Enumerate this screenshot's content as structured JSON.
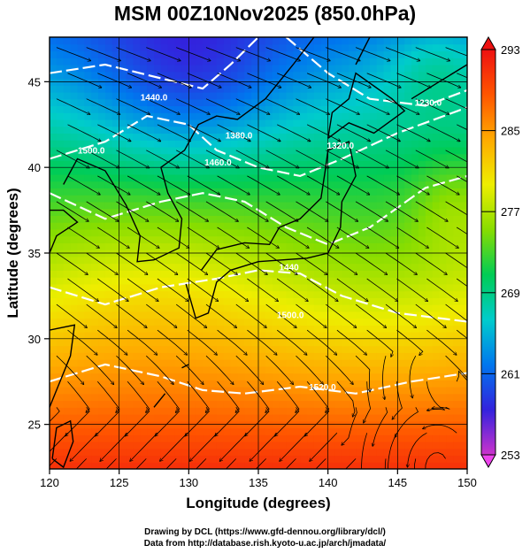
{
  "title": "MSM 00Z10Nov2025 (850.0hPa)",
  "xlabel": "Longitude (degrees)",
  "ylabel": "Latitude  (degrees)",
  "credits": {
    "line1": "Drawing by DCL (https://www.gfd-dennou.org/library/dcl/)",
    "line2": "Data from http://database.rish.kyoto-u.ac.jp/arch/jmadata/"
  },
  "chart_data": {
    "type": "heatmap",
    "x_range": [
      120,
      150
    ],
    "y_range": [
      22.4,
      47.6
    ],
    "x_ticks": [
      120,
      125,
      130,
      135,
      140,
      145,
      150
    ],
    "y_ticks": [
      25,
      30,
      35,
      40,
      45
    ],
    "grid": true,
    "colorbar": {
      "min": 253,
      "max": 293,
      "ticks": [
        253,
        261,
        269,
        277,
        285,
        293
      ],
      "colors": [
        "#cc33cc",
        "#3322dd",
        "#0077ee",
        "#00cccc",
        "#00cc55",
        "#88dd00",
        "#eeee00",
        "#ffaa00",
        "#ff5500",
        "#ee1111"
      ]
    },
    "contour_labels": [
      {
        "text": "1440.0",
        "lon": 127.5,
        "lat": 43.9
      },
      {
        "text": "1460.0",
        "lon": 132.1,
        "lat": 40.1
      },
      {
        "text": "1380.0",
        "lon": 133.6,
        "lat": 41.7
      },
      {
        "text": "1320.0",
        "lon": 140.9,
        "lat": 41.1
      },
      {
        "text": "1230.0",
        "lon": 147.2,
        "lat": 43.6
      },
      {
        "text": "1500.0",
        "lon": 123.0,
        "lat": 40.8
      },
      {
        "text": "1440",
        "lon": 137.2,
        "lat": 34.0
      },
      {
        "text": "1500.0",
        "lon": 137.3,
        "lat": 31.2
      },
      {
        "text": "1520.0",
        "lon": 139.6,
        "lat": 27.0
      }
    ]
  }
}
